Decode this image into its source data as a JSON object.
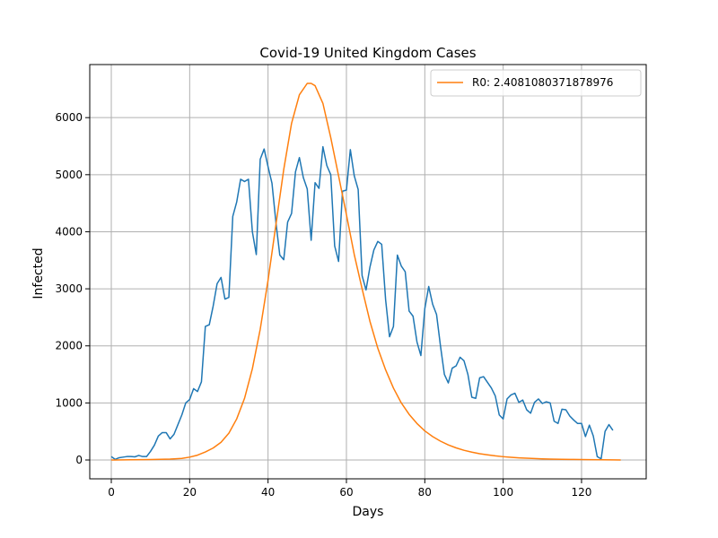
{
  "chart_data": {
    "type": "line",
    "title": "Covid-19 United Kingdom Cases",
    "xlabel": "Days",
    "ylabel": "Infected",
    "xlim": [
      -5.5,
      136.5
    ],
    "ylim": [
      -330,
      6930
    ],
    "xticks": [
      0,
      20,
      40,
      60,
      80,
      100,
      120
    ],
    "yticks": [
      0,
      1000,
      2000,
      3000,
      4000,
      5000,
      6000
    ],
    "grid": true,
    "legend_position": "top-right",
    "colors": {
      "actual": "#1f77b4",
      "model": "#ff7f0e",
      "grid": "#b0b0b0"
    },
    "series": [
      {
        "key": "actual",
        "x": [
          0,
          1,
          2,
          3,
          4,
          5,
          6,
          7,
          8,
          9,
          10,
          11,
          12,
          13,
          14,
          15,
          16,
          17,
          18,
          19,
          20,
          21,
          22,
          23,
          24,
          25,
          26,
          27,
          28,
          29,
          30,
          31,
          32,
          33,
          34,
          35,
          36,
          37,
          38,
          39,
          40,
          41,
          42,
          43,
          44,
          45,
          46,
          47,
          48,
          49,
          50,
          51,
          52,
          53,
          54,
          55,
          56,
          57,
          58,
          59,
          60,
          61,
          62,
          63,
          64,
          65,
          66,
          67,
          68,
          69,
          70,
          71,
          72,
          73,
          74,
          75,
          76,
          77,
          78,
          79,
          80,
          81,
          82,
          83,
          84,
          85,
          86,
          87,
          88,
          89,
          90,
          91,
          92,
          93,
          94,
          95,
          96,
          97,
          98,
          99,
          100,
          101,
          102,
          103,
          104,
          105,
          106,
          107,
          108,
          109,
          110,
          111,
          112,
          113,
          114,
          115,
          116,
          117,
          118,
          119,
          120,
          121,
          122,
          123,
          124,
          125,
          126,
          127,
          128
        ],
        "values": [
          60,
          10,
          40,
          50,
          60,
          60,
          55,
          80,
          60,
          60,
          150,
          260,
          420,
          480,
          480,
          370,
          450,
          620,
          790,
          1000,
          1060,
          1250,
          1200,
          1370,
          2340,
          2370,
          2700,
          3090,
          3200,
          2820,
          2850,
          4270,
          4520,
          4920,
          4880,
          4920,
          4000,
          3600,
          5270,
          5450,
          5140,
          4850,
          4170,
          3590,
          3510,
          4170,
          4320,
          5050,
          5300,
          4950,
          4750,
          3850,
          4860,
          4760,
          5490,
          5160,
          5000,
          3750,
          3480,
          4710,
          4730,
          5440,
          4980,
          4740,
          3230,
          2980,
          3380,
          3680,
          3830,
          3780,
          2810,
          2160,
          2340,
          3590,
          3400,
          3300,
          2610,
          2520,
          2070,
          1830,
          2650,
          3040,
          2730,
          2550,
          2000,
          1500,
          1350,
          1610,
          1650,
          1800,
          1740,
          1500,
          1100,
          1080,
          1440,
          1460,
          1360,
          1260,
          1120,
          790,
          720,
          1070,
          1140,
          1170,
          1010,
          1050,
          880,
          820,
          1010,
          1070,
          990,
          1020,
          1000,
          680,
          640,
          890,
          880,
          770,
          700,
          640,
          640,
          410,
          610,
          420,
          60,
          20,
          500,
          620,
          520
        ]
      },
      {
        "key": "model",
        "name": "R0: 2.4081080371878976",
        "x": [
          0,
          5,
          10,
          15,
          18,
          20,
          22,
          24,
          26,
          28,
          30,
          32,
          34,
          36,
          38,
          40,
          42,
          44,
          46,
          48,
          50,
          51,
          52,
          54,
          56,
          58,
          60,
          62,
          64,
          66,
          68,
          70,
          72,
          74,
          76,
          78,
          80,
          82,
          84,
          86,
          88,
          90,
          92,
          94,
          96,
          98,
          100,
          102,
          104,
          106,
          108,
          110,
          112,
          115,
          118,
          120,
          122,
          125,
          128,
          130
        ],
        "values": [
          0,
          3,
          8,
          15,
          28,
          50,
          85,
          140,
          210,
          310,
          470,
          720,
          1080,
          1600,
          2290,
          3150,
          4120,
          5090,
          5900,
          6400,
          6600,
          6600,
          6560,
          6250,
          5650,
          4980,
          4300,
          3600,
          3000,
          2430,
          1960,
          1580,
          1260,
          1000,
          800,
          640,
          510,
          410,
          330,
          265,
          212,
          170,
          138,
          110,
          90,
          72,
          58,
          47,
          38,
          31,
          25,
          20,
          16,
          12,
          9,
          7,
          5,
          3,
          2,
          1
        ]
      }
    ]
  }
}
